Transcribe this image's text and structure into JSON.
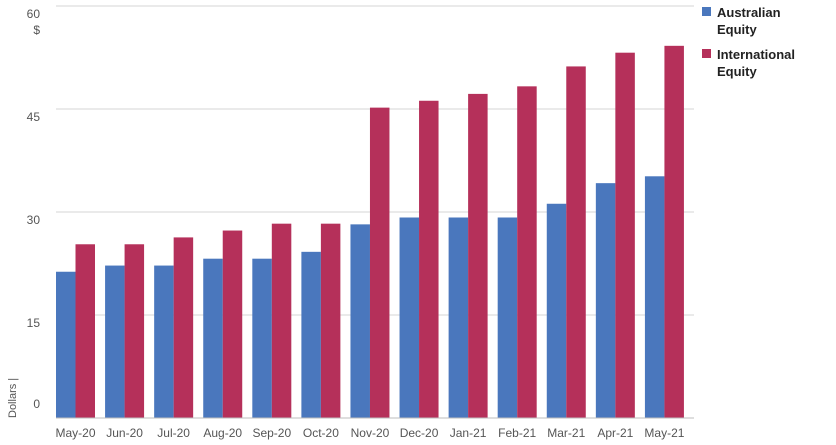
{
  "chart_data": {
    "type": "bar",
    "categories": [
      "May-20",
      "Jun-20",
      "Jul-20",
      "Aug-20",
      "Sep-20",
      "Oct-20",
      "Nov-20",
      "Dec-20",
      "Jan-21",
      "Feb-21",
      "Mar-21",
      "Apr-21",
      "May-21"
    ],
    "series": [
      {
        "name": "Australian Equity",
        "color": "#4a77bd",
        "values": [
          21.3,
          22.2,
          22.2,
          23.2,
          23.2,
          24.2,
          28.2,
          29.2,
          29.2,
          29.2,
          31.2,
          34.2,
          35.2
        ]
      },
      {
        "name": "International Equity",
        "color": "#b5305a",
        "values": [
          25.3,
          25.3,
          26.3,
          27.3,
          28.3,
          28.3,
          45.2,
          46.2,
          47.2,
          48.3,
          51.2,
          53.2,
          54.2
        ]
      }
    ],
    "yticks": [
      "0",
      "15",
      "30",
      "45",
      "60"
    ],
    "ylim": [
      0,
      60
    ],
    "yunit": "$",
    "ylabel": "Dollars |",
    "legend_position": "top-right",
    "grid": true
  }
}
